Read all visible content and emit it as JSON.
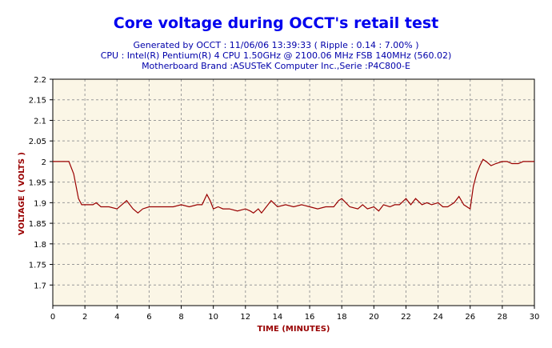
{
  "chart_data": {
    "type": "line",
    "title": "Core voltage during OCCT's retail test",
    "subtitle_lines": [
      "Generated by OCCT : 11/06/06 13:39:33 ( Ripple : 0.14 : 7.00% )",
      "CPU : Intel(R) Pentium(R) 4 CPU 1.50GHz @ 2100.06 MHz FSB 140MHz (560.02)",
      "Motherboard Brand :ASUSTeK Computer Inc.,Serie :P4C800-E"
    ],
    "xlabel": "TIME (MINUTES)",
    "ylabel": "VOLTAGE ( VOLTS )",
    "xlim": [
      0,
      30
    ],
    "ylim": [
      1.65,
      2.2
    ],
    "x_ticks": [
      0,
      2,
      4,
      6,
      8,
      10,
      12,
      14,
      16,
      18,
      20,
      22,
      24,
      26,
      28,
      30
    ],
    "y_ticks": [
      "1.7",
      "1.75",
      "1.8",
      "1.85",
      "1.9",
      "1.95",
      "2",
      "2.05",
      "2.1",
      "2.15",
      "2.2"
    ],
    "grid": true,
    "background": "#fbf6e6",
    "line_color": "#990000",
    "series": [
      {
        "x": [
          0,
          1,
          1.3,
          1.6,
          1.8,
          2.0,
          2.5,
          2.7,
          3.0,
          3.5,
          4.0,
          4.3,
          4.6,
          5.0,
          5.3,
          5.6,
          6.0,
          7.0,
          7.5,
          8.0,
          8.5,
          9.0,
          9.3,
          9.6,
          9.8,
          10.0,
          10.3,
          10.6,
          11.0,
          11.5,
          12.0,
          12.3,
          12.5,
          12.8,
          13.0,
          13.3,
          13.6,
          14.0,
          14.5,
          15.0,
          15.5,
          16.0,
          16.5,
          17.0,
          17.5,
          17.8,
          18.0,
          18.5,
          19.0,
          19.3,
          19.6,
          20.0,
          20.3,
          20.6,
          21.0,
          21.3,
          21.6,
          22.0,
          22.3,
          22.6,
          23.0,
          23.3,
          23.6,
          24.0,
          24.3,
          24.6,
          25.0,
          25.3,
          25.6,
          26.0,
          26.2,
          26.4,
          26.6,
          26.8,
          27.0,
          27.3,
          27.6,
          28.0,
          28.3,
          28.6,
          29.0,
          29.3,
          29.6,
          30.0
        ],
        "y": [
          2.0,
          2.0,
          1.97,
          1.91,
          1.895,
          1.895,
          1.895,
          1.9,
          1.89,
          1.89,
          1.885,
          1.895,
          1.905,
          1.885,
          1.875,
          1.885,
          1.89,
          1.89,
          1.89,
          1.895,
          1.89,
          1.895,
          1.895,
          1.92,
          1.905,
          1.885,
          1.89,
          1.885,
          1.885,
          1.88,
          1.885,
          1.88,
          1.875,
          1.885,
          1.875,
          1.89,
          1.905,
          1.89,
          1.895,
          1.89,
          1.895,
          1.89,
          1.885,
          1.89,
          1.89,
          1.905,
          1.91,
          1.89,
          1.885,
          1.895,
          1.885,
          1.89,
          1.88,
          1.895,
          1.89,
          1.895,
          1.895,
          1.91,
          1.895,
          1.91,
          1.895,
          1.9,
          1.895,
          1.9,
          1.89,
          1.89,
          1.9,
          1.915,
          1.895,
          1.885,
          1.94,
          1.97,
          1.99,
          2.005,
          2.0,
          1.99,
          1.995,
          2.0,
          2.0,
          1.995,
          1.995,
          2.0,
          2.0,
          2.0
        ]
      }
    ]
  }
}
